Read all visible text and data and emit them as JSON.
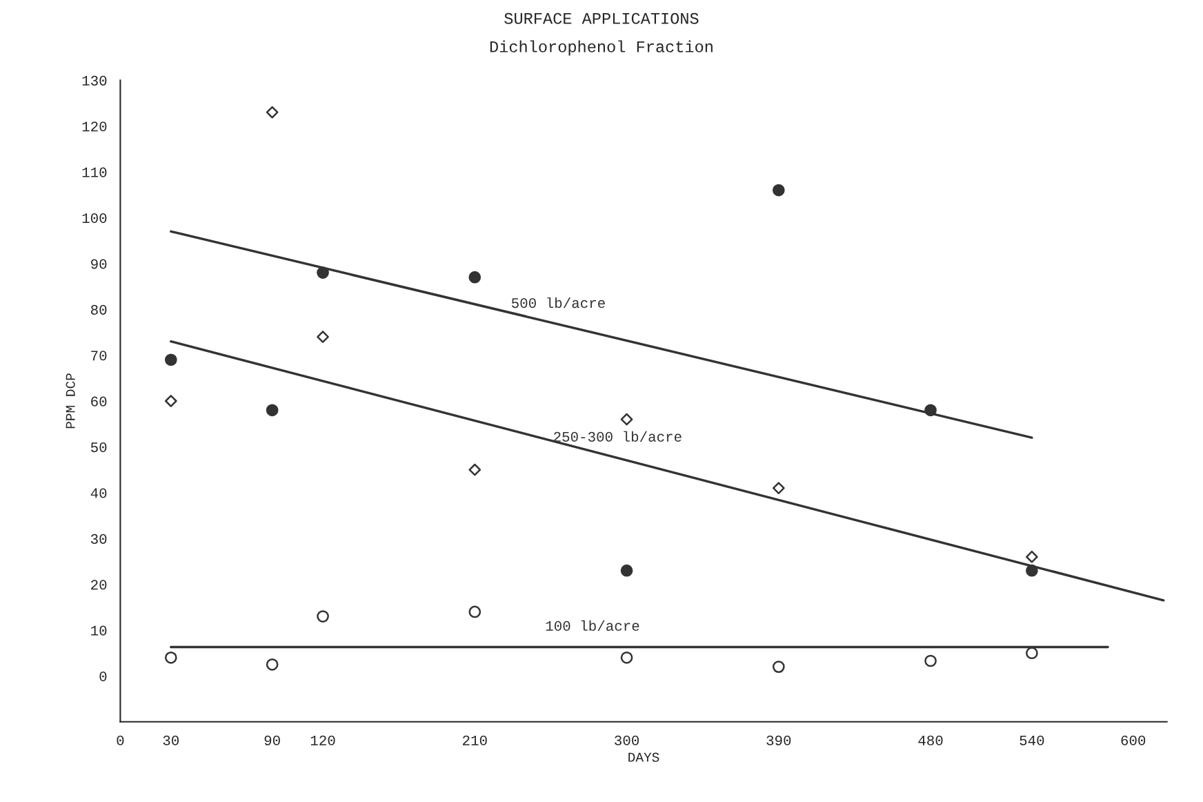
{
  "chart_data": {
    "type": "scatter",
    "title": "SURFACE APPLICATIONS",
    "subtitle": "Dichlorophenol Fraction",
    "xlabel": "DAYS",
    "ylabel": "PPM DCP",
    "xlim": [
      0,
      620
    ],
    "xticks": [
      0,
      30,
      90,
      120,
      210,
      300,
      390,
      480,
      540,
      600
    ],
    "ylim": [
      -10,
      130
    ],
    "yticks": [
      0,
      10,
      20,
      30,
      40,
      50,
      60,
      70,
      80,
      90,
      100,
      110,
      120,
      130
    ],
    "grid": false,
    "legend": false,
    "series": [
      {
        "marker": "circle",
        "color": "#333333",
        "x": [
          30,
          90,
          120,
          210,
          300,
          390,
          480,
          540
        ],
        "values": [
          69,
          58,
          88,
          87,
          23,
          106,
          58,
          23
        ]
      },
      {
        "marker": "diamond",
        "color": "#ffffff",
        "x": [
          30,
          90,
          120,
          210,
          300,
          390,
          540
        ],
        "values": [
          60,
          123,
          74,
          45,
          56,
          41,
          26
        ]
      },
      {
        "marker": "circle",
        "color": "#ffffff",
        "x": [
          30,
          90,
          120,
          210,
          300,
          390,
          480,
          540
        ],
        "values": [
          4,
          2.5,
          13,
          14,
          4,
          2,
          3.3,
          5
        ]
      },
      {
        "type": "line",
        "name": "500 lb/acre",
        "color": "#333333",
        "x": [
          30,
          540
        ],
        "values": [
          97,
          52
        ]
      },
      {
        "type": "line",
        "name": "250-300 lb/acre",
        "color": "#333333",
        "x": [
          30,
          618
        ],
        "values": [
          73,
          16.5
        ]
      },
      {
        "type": "line",
        "name": "100 lb/acre",
        "color": "#333333",
        "x": [
          30,
          585
        ],
        "values": [
          6.3,
          6.3
        ]
      }
    ]
  }
}
